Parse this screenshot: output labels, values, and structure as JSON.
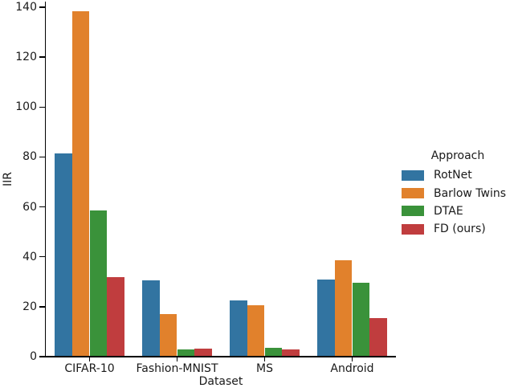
{
  "chart_data": {
    "type": "bar",
    "title": "",
    "xlabel": "Dataset",
    "ylabel": "IIR",
    "categories": [
      "CIFAR-10",
      "Fashion-MNIST",
      "MS",
      "Android"
    ],
    "series": [
      {
        "name": "RotNet",
        "color": "#3274A1",
        "values": [
          81.5,
          30.5,
          22.5,
          31
        ]
      },
      {
        "name": "Barlow Twins",
        "color": "#E1812C",
        "values": [
          138.5,
          17,
          20.5,
          38.5
        ]
      },
      {
        "name": "DTAE",
        "color": "#3A923A",
        "values": [
          58.5,
          3,
          3.4,
          29.5
        ]
      },
      {
        "name": "FD (ours)",
        "color": "#C03D3E",
        "values": [
          32,
          3.2,
          3,
          15.5
        ]
      }
    ],
    "ylim": [
      0,
      140
    ],
    "yticks": [
      0,
      20,
      40,
      60,
      80,
      100,
      120,
      140
    ],
    "legend": {
      "title": "Approach",
      "entries": [
        "RotNet",
        "Barlow Twins",
        "DTAE",
        "FD (ours)"
      ],
      "position": "center-right"
    },
    "grid": false,
    "axis_color": "#000000",
    "background_color": "#ffffff"
  }
}
